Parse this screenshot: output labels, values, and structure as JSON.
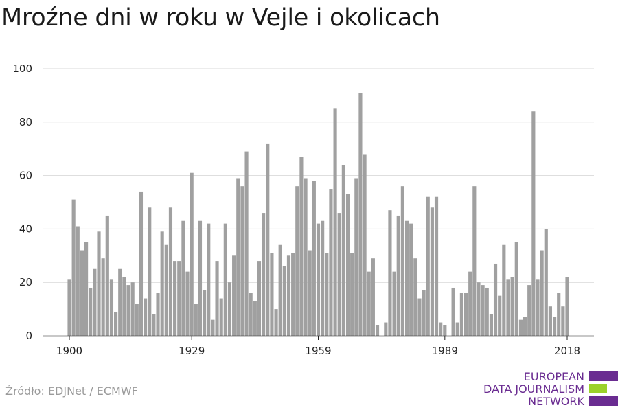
{
  "header": {
    "title": "Mroźne dni w roku w Vejle i okolicach"
  },
  "footer": {
    "source": "Źródło: EDJNet / ECMWF",
    "logo_lines": [
      "EUROPEAN",
      "DATA JOURNALISM",
      "NETWORK"
    ],
    "logo_colors": {
      "purple": "#6a2c91",
      "green": "#9bd12a"
    }
  },
  "chart_data": {
    "type": "bar",
    "x_start": 1900,
    "x_end": 2018,
    "x_ticks": [
      1900,
      1929,
      1959,
      1989,
      2018
    ],
    "y_ticks": [
      0,
      20,
      40,
      60,
      80,
      100
    ],
    "ylim": [
      0,
      100
    ],
    "bar_color": "#a0a0a0",
    "grid": true,
    "xlabel": "",
    "ylabel": "",
    "values": [
      21,
      51,
      41,
      32,
      35,
      18,
      25,
      39,
      29,
      45,
      21,
      9,
      25,
      22,
      19,
      20,
      12,
      54,
      14,
      48,
      8,
      16,
      39,
      34,
      48,
      28,
      28,
      43,
      24,
      61,
      12,
      43,
      17,
      42,
      6,
      28,
      14,
      42,
      20,
      30,
      59,
      56,
      69,
      16,
      13,
      28,
      46,
      72,
      31,
      10,
      34,
      26,
      30,
      31,
      56,
      67,
      59,
      32,
      58,
      42,
      43,
      31,
      55,
      85,
      46,
      64,
      53,
      31,
      59,
      91,
      68,
      24,
      29,
      4,
      0,
      5,
      47,
      24,
      45,
      56,
      43,
      42,
      29,
      14,
      17,
      52,
      48,
      52,
      5,
      4,
      0,
      18,
      5,
      16,
      16,
      24,
      56,
      20,
      19,
      18,
      8,
      27,
      15,
      34,
      21,
      22,
      35,
      6,
      7,
      19,
      84,
      21,
      32,
      40,
      11,
      7,
      16,
      11,
      22
    ]
  }
}
